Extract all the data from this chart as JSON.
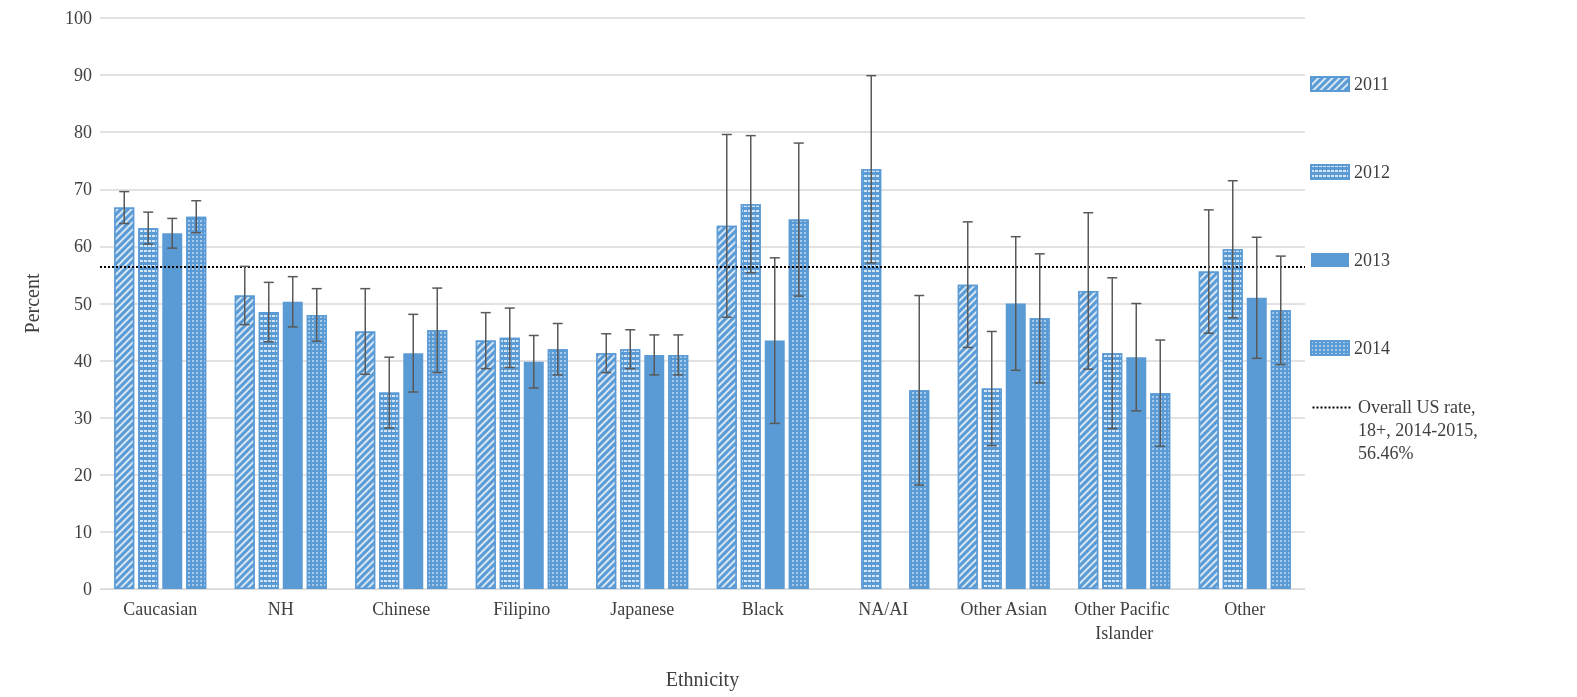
{
  "chart_data": {
    "type": "bar",
    "xlabel": "Ethnicity",
    "ylabel": "Percent",
    "categories": [
      "Caucasian",
      "NH",
      "Chinese",
      "Filipino",
      "Japanese",
      "Black",
      "NA/AI",
      "Other Asian",
      "Other Pacific Islander",
      "Other"
    ],
    "series": [
      {
        "name": "2011",
        "color": "#5b9bd5",
        "values": [
          66.8,
          51.4,
          45.1,
          43.5,
          41.3,
          63.6,
          null,
          53.3,
          52.2,
          55.6
        ],
        "errors": [
          2.8,
          5.1,
          7.5,
          4.9,
          3.4,
          16,
          null,
          11,
          13.7,
          10.8
        ]
      },
      {
        "name": "2012",
        "color": "#5b9bd5",
        "values": [
          63.2,
          48.5,
          34.4,
          44.0,
          42.0,
          67.4,
          73.5,
          35.1,
          41.3,
          59.5
        ],
        "errors": [
          2.8,
          5.2,
          6.2,
          5.2,
          3.4,
          12,
          16.4,
          10,
          13.2,
          12
        ]
      },
      {
        "name": "2013",
        "color": "#5b9bd5",
        "values": [
          62.3,
          50.3,
          41.3,
          39.8,
          41.0,
          43.5,
          null,
          50.0,
          40.6,
          51.0
        ],
        "errors": [
          2.6,
          4.4,
          6.8,
          4.6,
          3.5,
          14.5,
          null,
          11.7,
          9.4,
          10.6
        ]
      },
      {
        "name": "2014",
        "color": "#5b9bd5",
        "values": [
          65.2,
          48.0,
          45.3,
          42.0,
          41.0,
          64.7,
          34.8,
          47.4,
          34.3,
          48.8
        ],
        "errors": [
          2.8,
          4.6,
          7.4,
          4.5,
          3.5,
          13.4,
          16.6,
          11.3,
          9.3,
          9.5
        ]
      }
    ],
    "ylim": [
      0,
      100
    ],
    "yticks": [
      0,
      10,
      20,
      30,
      40,
      50,
      60,
      70,
      80,
      90,
      100
    ],
    "grid": "y",
    "legend": "right",
    "ref_lines": [
      {
        "axis": "y",
        "value": 56.46,
        "label": "Overall US rate, 18+, 2014-2015, 56.46%",
        "color": "#000000",
        "line_style": "dotted"
      }
    ]
  }
}
